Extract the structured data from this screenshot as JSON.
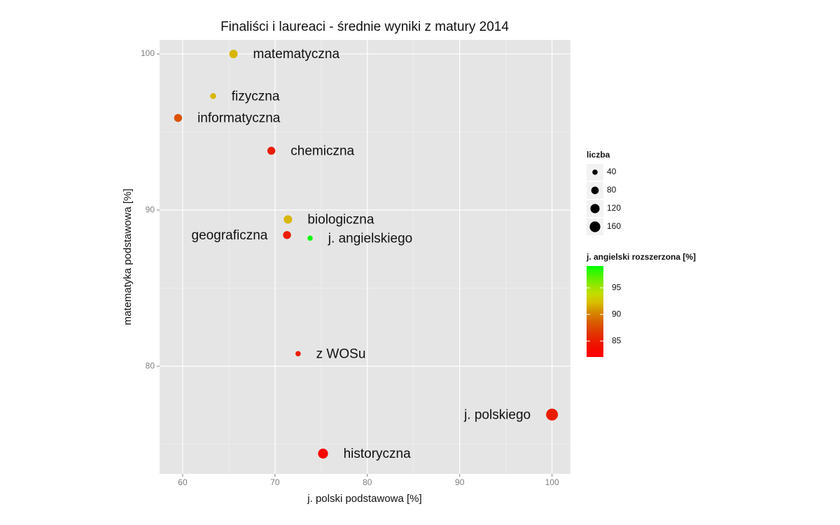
{
  "chart_data": {
    "type": "scatter",
    "title": "Finaliści i laureaci - średnie wyniki z matury 2014",
    "x_label": "j. polski podstawowa [%]",
    "y_label": "matematyka podstawowa [%]",
    "xlim": [
      57.5,
      102
    ],
    "ylim": [
      73.1,
      100.9
    ],
    "xticks": [
      60,
      70,
      80,
      90,
      100
    ],
    "yticks": [
      80,
      90,
      100
    ],
    "grid": true,
    "labels": [
      "matematyczna",
      "fizyczna",
      "informatyczna",
      "chemiczna",
      "biologiczna",
      "geograficzna",
      "j. angielskiego",
      "z WOSu",
      "j. polskiego",
      "historyczna"
    ],
    "x": [
      65.5,
      63.3,
      59.5,
      69.6,
      71.4,
      71.3,
      73.8,
      72.5,
      100,
      75.2
    ],
    "y": [
      100,
      97.3,
      95.9,
      93.8,
      89.4,
      88.4,
      88.2,
      80.8,
      76.9,
      74.4
    ],
    "size": [
      100,
      50,
      90,
      90,
      100,
      90,
      40,
      40,
      200,
      140
    ],
    "color_values": [
      92,
      92,
      88,
      85,
      92,
      85,
      99,
      85,
      85,
      83
    ],
    "size_legend": {
      "title": "liczba",
      "values": [
        40,
        80,
        120,
        160
      ]
    },
    "color_legend": {
      "title": "j. angielski rozszerzona [%]",
      "lim": [
        82,
        99.1
      ],
      "ticks": [
        85,
        90,
        95
      ],
      "low": "#ff0000",
      "high": "#00ff00"
    }
  }
}
